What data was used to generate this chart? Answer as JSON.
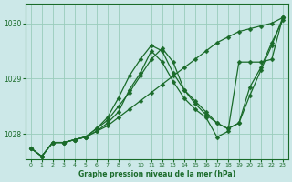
{
  "title": "Graphe pression niveau de la mer (hPa)",
  "bg_color": "#cce8e8",
  "grid_color": "#99ccbb",
  "line_color": "#1a6b2a",
  "marker": "D",
  "markersize": 2.5,
  "linewidth": 0.9,
  "xlim": [
    -0.5,
    23.5
  ],
  "ylim": [
    1027.55,
    1030.35
  ],
  "yticks": [
    1028,
    1029,
    1030
  ],
  "xticks": [
    0,
    1,
    2,
    3,
    4,
    5,
    6,
    7,
    8,
    9,
    10,
    11,
    12,
    13,
    14,
    15,
    16,
    17,
    18,
    19,
    20,
    21,
    22,
    23
  ],
  "series": [
    [
      1027.75,
      1027.6,
      1027.85,
      1027.85,
      1027.9,
      1027.95,
      1028.05,
      1028.15,
      1028.3,
      1028.45,
      1028.6,
      1028.75,
      1028.9,
      1029.05,
      1029.2,
      1029.35,
      1029.5,
      1029.65,
      1029.75,
      1029.85,
      1029.9,
      1029.95,
      1030.0,
      1030.1
    ],
    [
      1027.75,
      1027.6,
      1027.85,
      1027.85,
      1027.9,
      1027.95,
      1028.1,
      1028.25,
      1028.5,
      1028.75,
      1029.05,
      1029.35,
      1029.55,
      1029.3,
      1028.8,
      1028.55,
      1028.35,
      1028.2,
      1028.1,
      1028.2,
      1028.7,
      1029.15,
      1029.6,
      1030.1
    ],
    [
      1027.75,
      1027.6,
      1027.85,
      1027.85,
      1027.9,
      1027.95,
      1028.1,
      1028.3,
      1028.65,
      1029.05,
      1029.35,
      1029.6,
      1029.5,
      1029.1,
      1028.8,
      1028.6,
      1028.4,
      1028.2,
      1028.1,
      1028.2,
      1028.85,
      1029.2,
      1029.65,
      1030.05
    ],
    [
      1027.75,
      1027.6,
      1027.85,
      1027.85,
      1027.9,
      1027.95,
      1028.05,
      1028.2,
      1028.4,
      1028.8,
      1029.1,
      1029.5,
      1029.3,
      1028.95,
      1028.65,
      1028.45,
      1028.3,
      1027.95,
      1028.05,
      1029.3,
      1029.3,
      1029.3,
      1029.35,
      1030.1
    ]
  ]
}
